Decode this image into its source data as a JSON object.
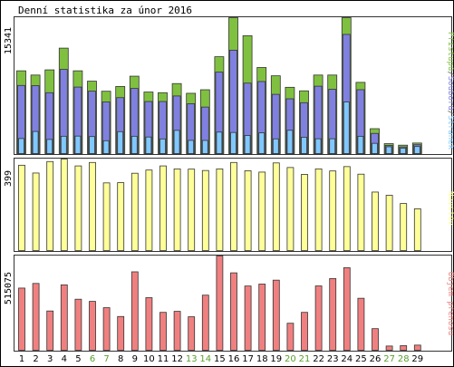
{
  "chart_data": {
    "type": "bar",
    "title": "Denní statistika za únor 2016",
    "categories": [
      "1",
      "2",
      "3",
      "4",
      "5",
      "6",
      "7",
      "8",
      "9",
      "10",
      "11",
      "12",
      "13",
      "14",
      "15",
      "16",
      "17",
      "18",
      "19",
      "20",
      "21",
      "22",
      "23",
      "24",
      "25",
      "26",
      "27",
      "28",
      "29"
    ],
    "weekend_days": [
      "6",
      "7",
      "13",
      "14",
      "20",
      "21",
      "27",
      "28"
    ],
    "colors": {
      "pristupu": "#80c040",
      "souboru": "#8080e0",
      "stranek": "#80c8ff",
      "navstev": "#ffff99",
      "prenos": "#f08080",
      "weekday_label": "#000000",
      "weekend_label": "#5a9f2e",
      "frame": "#333333",
      "border": "#000000"
    },
    "panels": [
      {
        "id": "hits",
        "ylabel": "15341",
        "ymax": 15341,
        "legend": [
          {
            "key": "pristupu",
            "text": "Přístupů",
            "color": "#80c040"
          },
          {
            "key": "souboru",
            "text": "Souborů",
            "color": "#8080e0"
          },
          {
            "key": "stranek",
            "text": "Stránek",
            "color": "#80c8ff"
          }
        ],
        "series": [
          {
            "name": "Přístupů",
            "key": "pristupu",
            "values": [
              9344,
              8865,
              9451,
              11903,
              9344,
              8176,
              7038,
              7575,
              8738,
              6947,
              6876,
              7903,
              6806,
              7207,
              10933,
              15341,
              13301,
              9718,
              8782,
              7483,
              7084,
              8865,
              8865,
              15341,
              8040,
              2811,
              1123,
              951,
              1192
            ]
          },
          {
            "name": "Souborů",
            "key": "souboru",
            "values": [
              7693,
              7667,
              6872,
              9504,
              7509,
              7049,
              5828,
              6316,
              7351,
              5879,
              5879,
              6505,
              5628,
              5254,
              9193,
              11671,
              7955,
              8135,
              6690,
              6185,
              5747,
              7608,
              7255,
              13452,
              7212,
              2278,
              923,
              754,
              1000
            ]
          },
          {
            "name": "Stránek",
            "key": "stranek",
            "values": [
              1700,
              2498,
              1600,
              1959,
              1977,
              1925,
              1452,
              2479,
              1959,
              1872,
              1655,
              2622,
              1493,
              1487,
              2426,
              2384,
              2043,
              2340,
              1663,
              2632,
              1849,
              1672,
              1672,
              5828,
              1955,
              1159,
              771,
              615,
              800
            ]
          }
        ]
      },
      {
        "id": "visits",
        "ylabel": "399",
        "ymax": 399,
        "legend": [
          {
            "key": "navstev",
            "text": "Návštěv",
            "color": "#ffff99"
          }
        ],
        "series": [
          {
            "name": "Návštěv",
            "key": "navstev",
            "values": [
              372,
              338,
              388,
              399,
              369,
              384,
              295,
              296,
              337,
              351,
              369,
              356,
              355,
              349,
              356,
              384,
              348,
              342,
              382,
              362,
              332,
              356,
              347,
              366,
              333,
              255,
              241,
              205,
              182
            ]
          }
        ]
      },
      {
        "id": "traffic",
        "ylabel": "515075",
        "ymax": 515075,
        "legend": [
          {
            "key": "prenos",
            "text": "Objem přenosu",
            "color": "#f08080"
          }
        ],
        "series": [
          {
            "name": "Objem přenosu",
            "key": "prenos",
            "values": [
              339650,
              365000,
              214500,
              357400,
              278800,
              267000,
              232500,
              184400,
              428500,
              287300,
              207000,
              212500,
              183000,
              301000,
              515075,
              423000,
              351000,
              361500,
              383000,
              147500,
              207000,
              351500,
              392000,
              451000,
              284000,
              118000,
              23000,
              25000,
              28000
            ]
          }
        ]
      }
    ]
  }
}
